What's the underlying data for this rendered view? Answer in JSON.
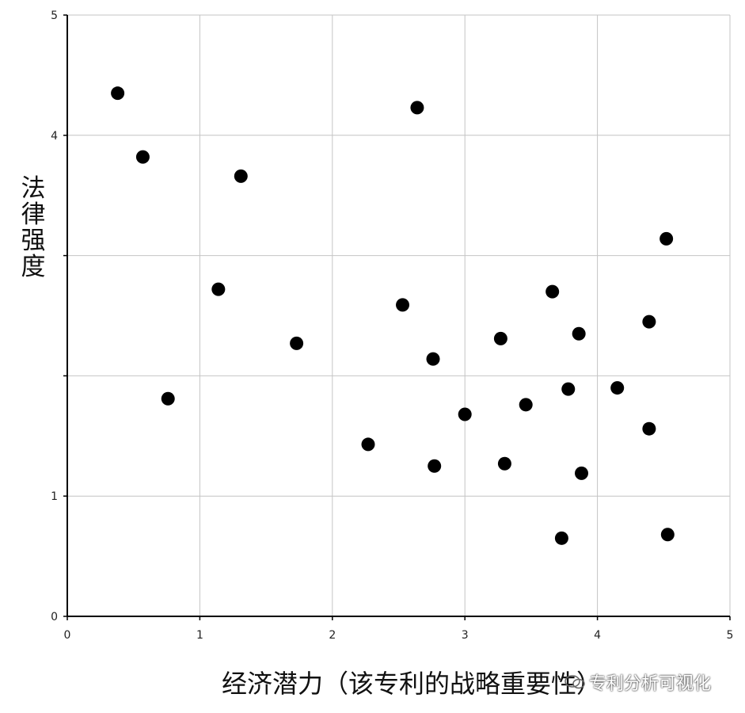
{
  "chart_data": {
    "type": "scatter",
    "title": "",
    "xlabel": "经济潜力（该专利的战略重要性）",
    "ylabel": "法律强度",
    "xlim": [
      0,
      5
    ],
    "ylim": [
      0,
      5
    ],
    "x_ticks": [
      "0",
      "1",
      "2",
      "3",
      "4",
      "5"
    ],
    "y_ticks": [
      "0",
      "1",
      "",
      "",
      "4",
      "5"
    ],
    "grid": true,
    "points": [
      {
        "x": 0.38,
        "y": 4.35
      },
      {
        "x": 0.57,
        "y": 3.82
      },
      {
        "x": 0.76,
        "y": 1.81
      },
      {
        "x": 1.14,
        "y": 2.72
      },
      {
        "x": 1.31,
        "y": 3.66
      },
      {
        "x": 1.73,
        "y": 2.27
      },
      {
        "x": 2.27,
        "y": 1.43
      },
      {
        "x": 2.53,
        "y": 2.59
      },
      {
        "x": 2.64,
        "y": 4.23
      },
      {
        "x": 2.76,
        "y": 2.14
      },
      {
        "x": 2.77,
        "y": 1.25
      },
      {
        "x": 3.0,
        "y": 1.68
      },
      {
        "x": 3.27,
        "y": 2.31
      },
      {
        "x": 3.3,
        "y": 1.27
      },
      {
        "x": 3.46,
        "y": 1.76
      },
      {
        "x": 3.66,
        "y": 2.7
      },
      {
        "x": 3.73,
        "y": 0.65
      },
      {
        "x": 3.78,
        "y": 1.89
      },
      {
        "x": 3.86,
        "y": 2.35
      },
      {
        "x": 3.88,
        "y": 1.19
      },
      {
        "x": 4.15,
        "y": 1.9
      },
      {
        "x": 4.39,
        "y": 2.45
      },
      {
        "x": 4.39,
        "y": 1.56
      },
      {
        "x": 4.52,
        "y": 3.14
      },
      {
        "x": 4.53,
        "y": 0.68
      }
    ]
  },
  "watermark": "专利分析可视化"
}
